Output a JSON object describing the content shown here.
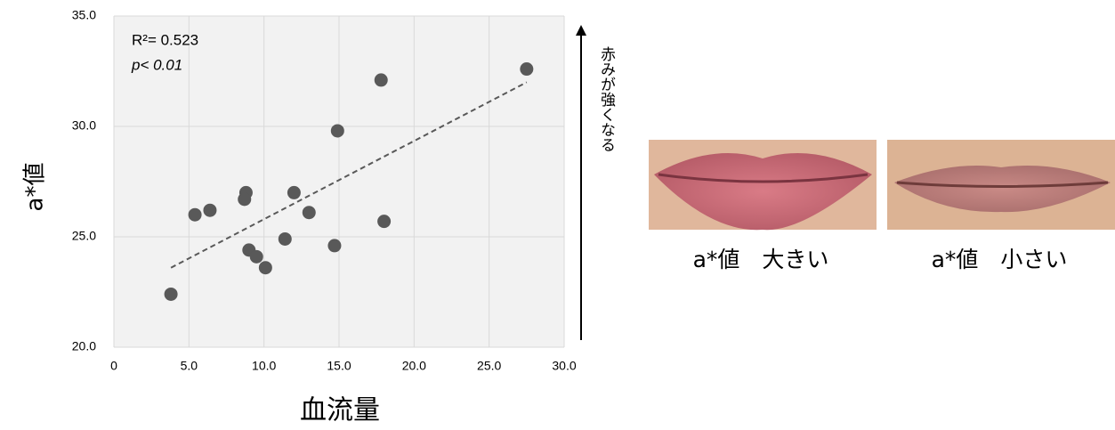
{
  "chart_data": {
    "type": "scatter",
    "y_label": "a*値",
    "x_label": "血流量",
    "annotations": [
      "R²= 0.523",
      "p< 0.01"
    ],
    "side_label": "赤みが強くなる",
    "image_captions": [
      "a*値　大きい",
      "a*値　小さい"
    ],
    "series": [
      {
        "color": "#595959",
        "x": [
          3.8,
          5.4,
          6.4,
          8.8,
          8.7,
          9.0,
          9.5,
          10.1,
          11.4,
          12.0,
          13.0,
          14.7,
          14.9,
          17.8,
          18.0,
          27.5
        ],
        "values": [
          22.4,
          26.0,
          26.2,
          27.0,
          26.7,
          24.4,
          24.1,
          23.6,
          24.9,
          27.0,
          26.1,
          24.6,
          29.8,
          32.1,
          25.7,
          32.6
        ]
      }
    ],
    "trendline": {
      "color": "#595959",
      "x": [
        3.8,
        27.5
      ],
      "values": [
        23.6,
        32.0
      ]
    },
    "xlim": [
      0,
      30
    ],
    "ylim": [
      20,
      35
    ],
    "xticks": [
      0,
      {
        "value": 5,
        "label": "5.0"
      },
      {
        "value": 10,
        "label": "10.0"
      },
      {
        "value": 15,
        "label": "15.0"
      },
      {
        "value": 20,
        "label": "20.0"
      },
      {
        "value": 25,
        "label": "25.0"
      },
      {
        "value": 30,
        "label": "30.0"
      }
    ],
    "yticks": [
      {
        "value": 20,
        "label": "20.0"
      },
      {
        "value": 25,
        "label": "25.0"
      },
      {
        "value": 30,
        "label": "30.0"
      },
      {
        "value": 35,
        "label": "35.0"
      }
    ],
    "grid": true
  }
}
